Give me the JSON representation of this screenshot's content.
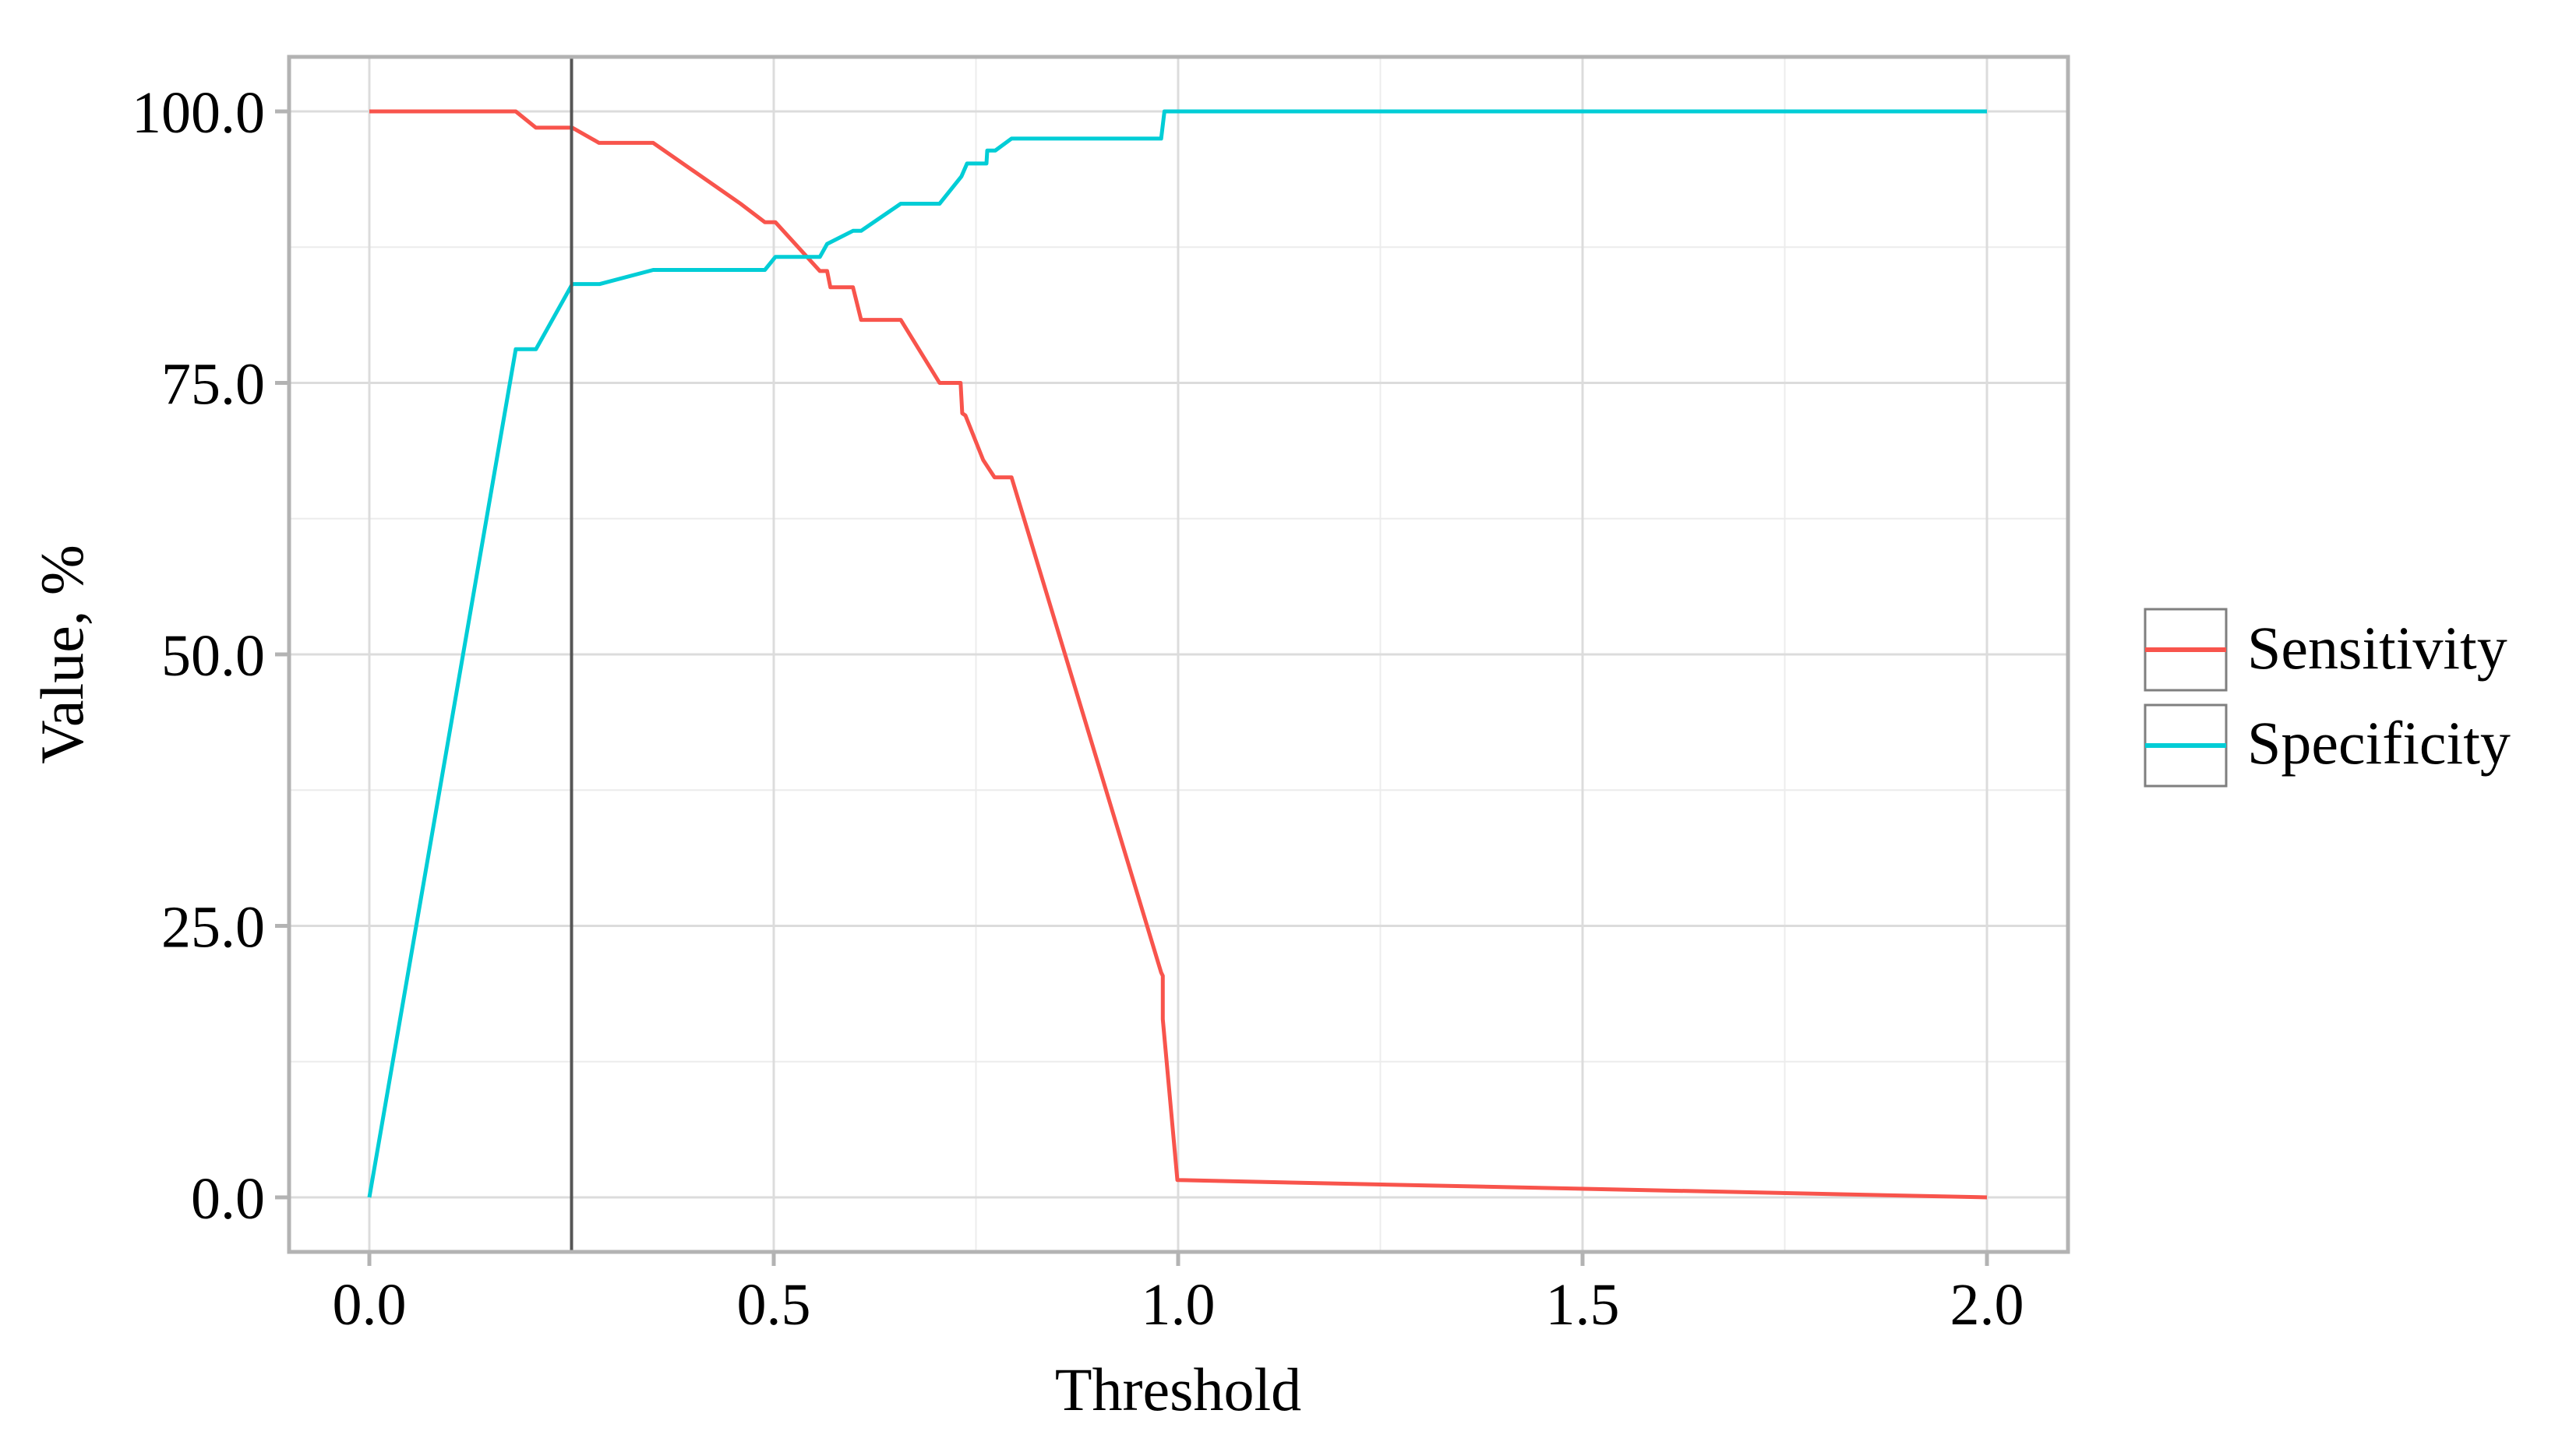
{
  "chart_data": {
    "type": "line",
    "title": "",
    "xlabel": "Threshold",
    "ylabel": "Value, %",
    "xlim": [
      -0.1,
      2.1
    ],
    "ylim": [
      -5,
      105
    ],
    "x_ticks": [
      0.0,
      0.5,
      1.0,
      1.5,
      2.0
    ],
    "x_tick_labels": [
      "0.0",
      "0.5",
      "1.0",
      "1.5",
      "2.0"
    ],
    "y_ticks": [
      0.0,
      25.0,
      50.0,
      75.0,
      100.0
    ],
    "y_tick_labels": [
      "0.0",
      "25.0",
      "50.0",
      "75.0",
      "100.0"
    ],
    "grid": true,
    "legend_position": "right",
    "vertical_reference_line": {
      "x": 0.25,
      "color": "#555555"
    },
    "series": [
      {
        "name": "Sensitivity",
        "color": "#f8544c",
        "points": [
          [
            0.0,
            100.0
          ],
          [
            0.181,
            100.0
          ],
          [
            0.206,
            98.5
          ],
          [
            0.251,
            98.5
          ],
          [
            0.284,
            97.1
          ],
          [
            0.351,
            97.1
          ],
          [
            0.459,
            91.5
          ],
          [
            0.489,
            89.8
          ],
          [
            0.502,
            89.8
          ],
          [
            0.557,
            85.3
          ],
          [
            0.566,
            85.3
          ],
          [
            0.57,
            83.8
          ],
          [
            0.598,
            83.8
          ],
          [
            0.608,
            80.8
          ],
          [
            0.657,
            80.8
          ],
          [
            0.705,
            75.0
          ],
          [
            0.731,
            75.0
          ],
          [
            0.733,
            72.2
          ],
          [
            0.737,
            72.0
          ],
          [
            0.759,
            67.9
          ],
          [
            0.773,
            66.3
          ],
          [
            0.794,
            66.3
          ],
          [
            0.979,
            20.7
          ],
          [
            0.981,
            20.4
          ],
          [
            0.981,
            16.4
          ],
          [
            0.999,
            1.6
          ],
          [
            1.085,
            1.45
          ],
          [
            2.0,
            0.0
          ]
        ]
      },
      {
        "name": "Specificity",
        "color": "#00cdd6",
        "points": [
          [
            0.0,
            0.0
          ],
          [
            0.181,
            78.1
          ],
          [
            0.206,
            78.1
          ],
          [
            0.251,
            84.1
          ],
          [
            0.285,
            84.1
          ],
          [
            0.351,
            85.4
          ],
          [
            0.489,
            85.4
          ],
          [
            0.502,
            86.6
          ],
          [
            0.557,
            86.6
          ],
          [
            0.566,
            87.8
          ],
          [
            0.598,
            89.0
          ],
          [
            0.608,
            89.0
          ],
          [
            0.657,
            91.5
          ],
          [
            0.705,
            91.5
          ],
          [
            0.732,
            94.0
          ],
          [
            0.739,
            95.2
          ],
          [
            0.763,
            95.2
          ],
          [
            0.764,
            96.4
          ],
          [
            0.774,
            96.4
          ],
          [
            0.794,
            97.5
          ],
          [
            0.979,
            97.5
          ],
          [
            0.983,
            100.0
          ],
          [
            2.0,
            100.0
          ]
        ]
      }
    ]
  },
  "legend": {
    "items": [
      {
        "label": "Sensitivity",
        "color": "#f8544c"
      },
      {
        "label": "Specificity",
        "color": "#00cdd6"
      }
    ]
  },
  "axes": {
    "x_title": "Threshold",
    "y_title": "Value, %"
  }
}
